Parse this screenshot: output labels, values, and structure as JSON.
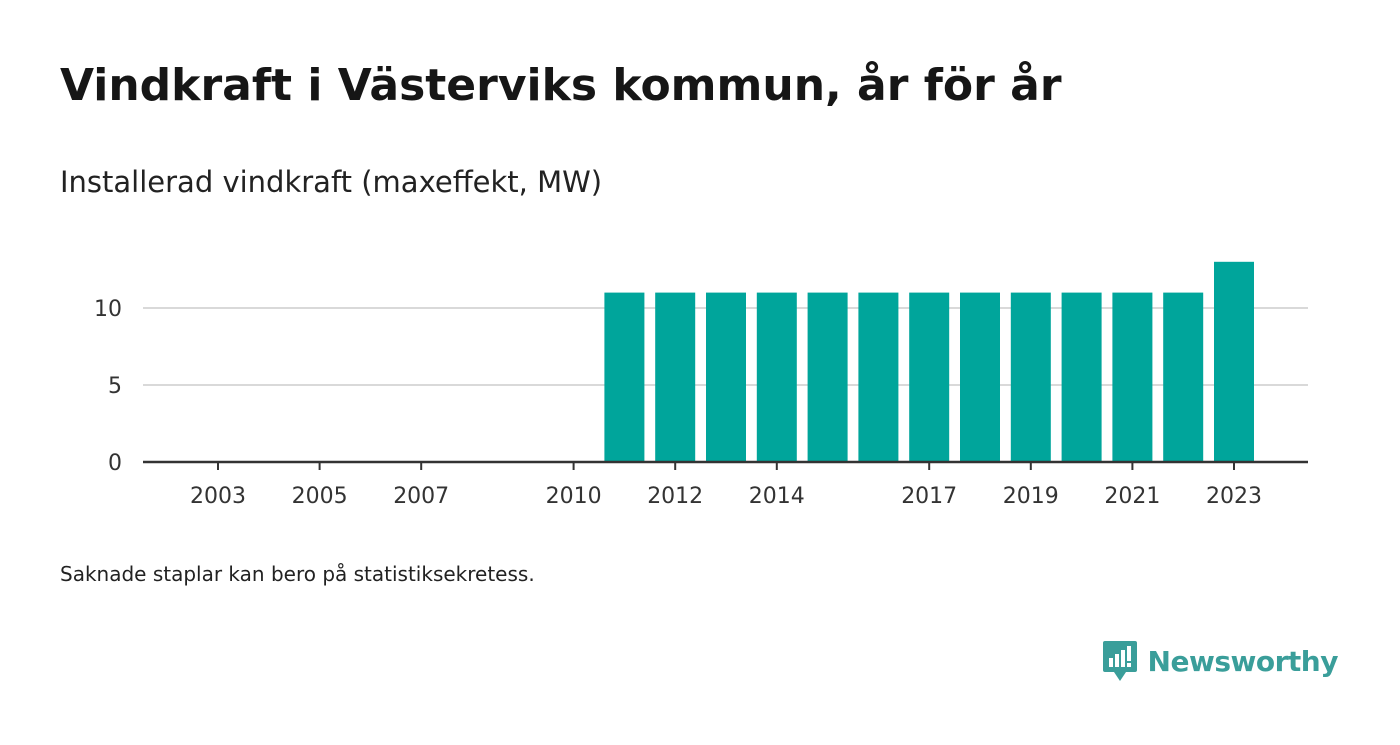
{
  "title": "Vindkraft i Västerviks kommun, år för år",
  "subtitle": "Installerad vindkraft (maxeffekt, MW)",
  "note": "Saknade staplar kan bero på statistiksekretess.",
  "brand": {
    "name": "Newsworthy",
    "icon": "newsworthy-logo-icon",
    "color": "#3a9e9a"
  },
  "chart_data": {
    "type": "bar",
    "categories": [
      "2003",
      "2004",
      "2005",
      "2006",
      "2007",
      "2008",
      "2009",
      "2010",
      "2011",
      "2012",
      "2013",
      "2014",
      "2015",
      "2016",
      "2017",
      "2018",
      "2019",
      "2020",
      "2021",
      "2022",
      "2023"
    ],
    "values": [
      0,
      0,
      0,
      0,
      0,
      0,
      0,
      0,
      11,
      11,
      11,
      11,
      11,
      11,
      11,
      11,
      11,
      11,
      11,
      11,
      13
    ],
    "x_tick_labels": [
      "2003",
      "2005",
      "2007",
      "2010",
      "2012",
      "2014",
      "2017",
      "2019",
      "2021",
      "2023"
    ],
    "y_ticks": [
      0,
      5,
      10
    ],
    "ylim": [
      0,
      13
    ],
    "xlabel": "",
    "ylabel": "",
    "grid": true,
    "bar_color": "#00a59b",
    "grid_color": "#d9d9d9",
    "axis_color": "#333333"
  }
}
